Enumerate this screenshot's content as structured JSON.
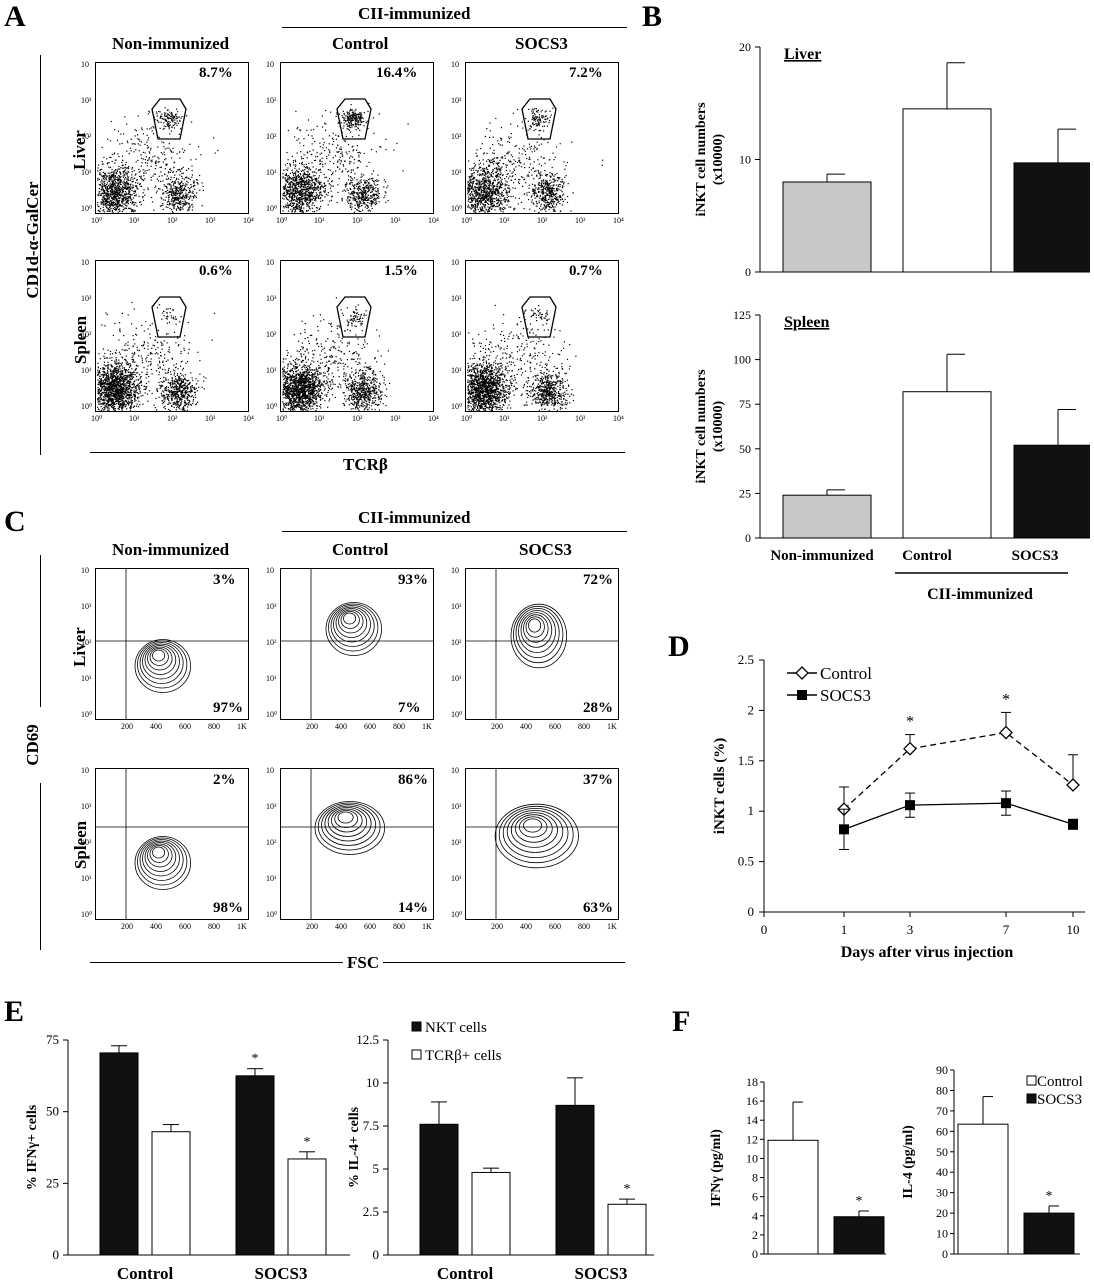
{
  "panelA": {
    "letter": "A",
    "group_header": "CII-immunized",
    "col_labels": [
      "Non-immunized",
      "Control",
      "SOCS3"
    ],
    "row_labels": [
      "Liver",
      "Spleen"
    ],
    "y_axis": "CD1d-α-GalCer",
    "x_axis": "TCRβ",
    "percentages": {
      "liver": [
        "8.7%",
        "16.4%",
        "7.2%"
      ],
      "spleen": [
        "0.6%",
        "1.5%",
        "0.7%"
      ]
    },
    "ticks_y": [
      "10⁰",
      "10¹",
      "10²",
      "10³",
      "10"
    ],
    "ticks_x": [
      "10⁰",
      "10¹",
      "10²",
      "10³",
      "10⁴"
    ]
  },
  "panelC": {
    "letter": "C",
    "group_header": "CII-immunized",
    "col_labels": [
      "Non-immunized",
      "Control",
      "SOCS3"
    ],
    "row_labels": [
      "Liver",
      "Spleen"
    ],
    "y_axis": "CD69",
    "x_axis": "FSC",
    "percentages_top": {
      "liver": [
        "3%",
        "93%",
        "72%"
      ],
      "spleen": [
        "2%",
        "86%",
        "37%"
      ]
    },
    "percentages_bottom": {
      "liver": [
        "97%",
        "7%",
        "28%"
      ],
      "spleen": [
        "98%",
        "14%",
        "63%"
      ]
    },
    "ticks_x": [
      "200",
      "400",
      "600",
      "800",
      "1K"
    ],
    "ticks_y": [
      "10⁰",
      "10¹",
      "10²",
      "10³",
      "10"
    ]
  },
  "chart_data": [
    {
      "panel": "B",
      "type": "bar",
      "subtitle": "Liver",
      "ylabel": "iNKT cell numbers (x10000)",
      "categories": [
        "Non-immunized",
        "Control",
        "SOCS3"
      ],
      "values": [
        8,
        14.5,
        9.7
      ],
      "errors": [
        0.7,
        4.1,
        3.0
      ],
      "ylim": [
        0,
        20
      ],
      "yticks": [
        0,
        10,
        20
      ],
      "colors": [
        "#c8c8c8",
        "#ffffff",
        "#111111"
      ]
    },
    {
      "panel": "B",
      "type": "bar",
      "subtitle": "Spleen",
      "ylabel": "iNKT cell numbers (x10000)",
      "categories": [
        "Non-immunized",
        "Control",
        "SOCS3"
      ],
      "values": [
        24,
        82,
        52
      ],
      "errors": [
        3,
        21,
        20
      ],
      "ylim": [
        0,
        125
      ],
      "yticks": [
        0,
        25,
        50,
        75,
        100,
        125
      ],
      "colors": [
        "#c8c8c8",
        "#ffffff",
        "#111111"
      ],
      "group_label": "CII-immunized"
    },
    {
      "panel": "D",
      "type": "line",
      "xlabel": "Days after virus injection",
      "ylabel": "iNKT cells (%)",
      "x": [
        "1",
        "3",
        "7",
        "10"
      ],
      "xticks": [
        "0",
        "1",
        "3",
        "7",
        "10"
      ],
      "ylim": [
        0,
        2.5
      ],
      "yticks": [
        "0",
        "0.5",
        "1",
        "1.5",
        "2",
        "2.5"
      ],
      "series": [
        {
          "name": "Control",
          "values": [
            1.02,
            1.62,
            1.78,
            1.26
          ],
          "errors": [
            0.22,
            0.14,
            0.2,
            0.3
          ],
          "style": "dashed",
          "marker": "open-diamond"
        },
        {
          "name": "SOCS3",
          "values": [
            0.82,
            1.06,
            1.08,
            0.87
          ],
          "errors": [
            0.2,
            0.12,
            0.12,
            0.05
          ],
          "style": "solid",
          "marker": "filled-square"
        }
      ],
      "annotations": [
        "*",
        "*"
      ]
    },
    {
      "panel": "E",
      "type": "bar",
      "ylabel": "% IFNγ+ cells",
      "categories": [
        "Control",
        "SOCS3"
      ],
      "series": [
        {
          "name": "NKT cells",
          "values": [
            70.5,
            62.5
          ],
          "errors": [
            2.5,
            2.5
          ]
        },
        {
          "name": "TCRβ+ cells",
          "values": [
            43,
            33.5
          ],
          "errors": [
            2.5,
            2.5
          ]
        }
      ],
      "ylim": [
        0,
        75
      ],
      "yticks": [
        "0",
        "25",
        "50",
        "75"
      ],
      "annotations": [
        "*",
        "*"
      ]
    },
    {
      "panel": "E",
      "type": "bar",
      "ylabel": "% IL-4+ cells",
      "categories": [
        "Control",
        "SOCS3"
      ],
      "series": [
        {
          "name": "NKT cells",
          "values": [
            7.6,
            8.7
          ],
          "errors": [
            1.3,
            1.6
          ]
        },
        {
          "name": "TCRβ+ cells",
          "values": [
            4.8,
            2.95
          ],
          "errors": [
            0.25,
            0.3
          ]
        }
      ],
      "ylim": [
        0,
        12.5
      ],
      "yticks": [
        "0",
        "2.5",
        "5",
        "7.5",
        "10",
        "12.5"
      ],
      "annotations": [
        "*"
      ]
    },
    {
      "panel": "F",
      "type": "bar",
      "ylabel": "IFNγ (pg/ml)",
      "series": [
        {
          "name": "Control",
          "values": [
            11.9
          ],
          "errors": [
            4
          ]
        },
        {
          "name": "SOCS3",
          "values": [
            3.9
          ],
          "errors": [
            0.6
          ]
        }
      ],
      "ylim": [
        0,
        18
      ],
      "yticks": [
        "0",
        "2",
        "4",
        "6",
        "8",
        "10",
        "12",
        "14",
        "16",
        "18"
      ],
      "annotations": [
        "*"
      ]
    },
    {
      "panel": "F",
      "type": "bar",
      "ylabel": "IL-4 (pg/ml)",
      "series": [
        {
          "name": "Control",
          "values": [
            63.5
          ],
          "errors": [
            13.5
          ]
        },
        {
          "name": "SOCS3",
          "values": [
            20
          ],
          "errors": [
            3.5
          ]
        }
      ],
      "ylim": [
        0,
        90
      ],
      "yticks": [
        "0",
        "10",
        "20",
        "30",
        "40",
        "50",
        "60",
        "70",
        "80",
        "90"
      ],
      "annotations": [
        "*"
      ]
    }
  ],
  "labels": {
    "B": "B",
    "D": "D",
    "E": "E",
    "F": "F",
    "liver_title": "Liver",
    "spleen_title": "Spleen",
    "b_ylabel": "iNKT cell numbers",
    "b_ylabel2": "(x10000)",
    "b_cats": [
      "Non-immunized",
      "Control",
      "SOCS3"
    ],
    "b_group": "CII-immunized",
    "d_legend": [
      "Control",
      "SOCS3"
    ],
    "d_ylabel": "iNKT cells (%)",
    "d_xlabel": "Days after virus injection",
    "e_legend": [
      "NKT cells",
      "TCRβ+ cells"
    ],
    "e_ylabel1": "% IFNγ+ cells",
    "e_ylabel2": "% IL-4+ cells",
    "e_cats": [
      "Control",
      "SOCS3"
    ],
    "f_legend": [
      "Control",
      "SOCS3"
    ],
    "f_ylabel1": "IFNγ (pg/ml)",
    "f_ylabel2": "IL-4 (pg/ml)",
    "star": "*"
  }
}
